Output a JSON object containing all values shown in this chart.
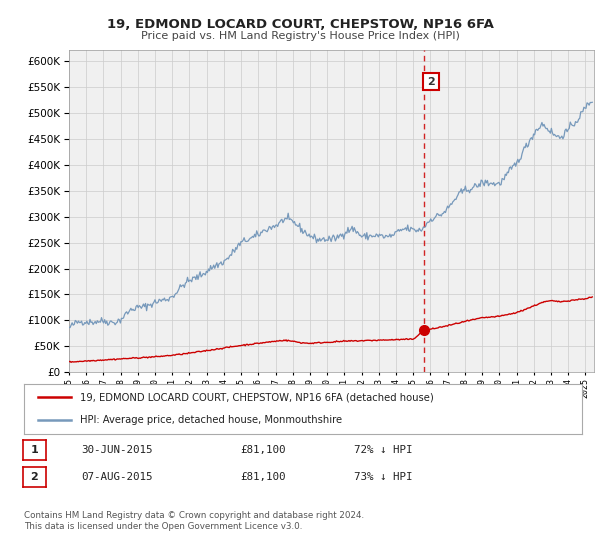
{
  "title": "19, EDMOND LOCARD COURT, CHEPSTOW, NP16 6FA",
  "subtitle": "Price paid vs. HM Land Registry's House Price Index (HPI)",
  "legend_line1": "19, EDMOND LOCARD COURT, CHEPSTOW, NP16 6FA (detached house)",
  "legend_line2": "HPI: Average price, detached house, Monmouthshire",
  "table_row1": [
    "1",
    "30-JUN-2015",
    "£81,100",
    "72% ↓ HPI"
  ],
  "table_row2": [
    "2",
    "07-AUG-2015",
    "£81,100",
    "73% ↓ HPI"
  ],
  "footnote1": "Contains HM Land Registry data © Crown copyright and database right 2024.",
  "footnote2": "This data is licensed under the Open Government Licence v3.0.",
  "vline_x": 2015.62,
  "marker_x": 2015.62,
  "marker_y": 81100,
  "ylim": [
    0,
    620000
  ],
  "xlim_start": 1995.0,
  "xlim_end": 2025.5,
  "red_color": "#cc0000",
  "blue_color": "#7799bb",
  "grid_color": "#cccccc",
  "background_color": "#ffffff",
  "plot_bg_color": "#f0f0f0"
}
